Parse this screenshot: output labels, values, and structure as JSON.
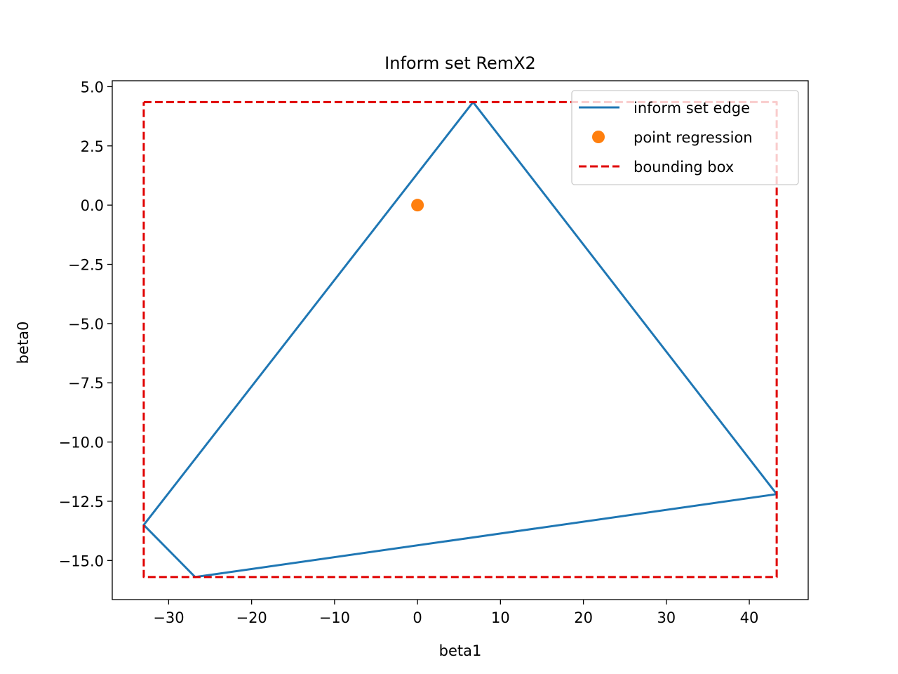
{
  "chart_data": {
    "type": "line",
    "title": "Inform set RemX2",
    "xlabel": "beta1",
    "ylabel": "beta0",
    "xlim": [
      -36.8,
      47.1
    ],
    "ylim": [
      -16.65,
      5.25
    ],
    "xticks": [
      -30,
      -20,
      -10,
      0,
      10,
      20,
      30,
      40
    ],
    "xtick_labels": [
      "−30",
      "−20",
      "−10",
      "0",
      "10",
      "20",
      "30",
      "40"
    ],
    "yticks": [
      5.0,
      2.5,
      0.0,
      -2.5,
      -5.0,
      -7.5,
      -10.0,
      -12.5,
      -15.0
    ],
    "ytick_labels": [
      "5.0",
      "2.5",
      "0.0",
      "−2.5",
      "−5.0",
      "−7.5",
      "−10.0",
      "−12.5",
      "−15.0"
    ],
    "grid": false,
    "legend_position": "top-right",
    "series": [
      {
        "name": "inform set edge",
        "kind": "line",
        "style": "solid",
        "color": "#1f77b4",
        "x": [
          6.7,
          43.3,
          -26.8,
          -33.0,
          6.7
        ],
        "y": [
          4.35,
          -12.2,
          -15.7,
          -13.5,
          4.35
        ]
      },
      {
        "name": "point regression",
        "kind": "marker",
        "color": "#ff7f0e",
        "x": [
          0.0
        ],
        "y": [
          0.0
        ]
      },
      {
        "name": "bounding box",
        "kind": "line",
        "style": "dashed",
        "color": "#e00000",
        "x": [
          -33.0,
          43.3,
          43.3,
          -33.0,
          -33.0
        ],
        "y": [
          4.35,
          4.35,
          -15.7,
          -15.7,
          4.35
        ]
      }
    ]
  }
}
